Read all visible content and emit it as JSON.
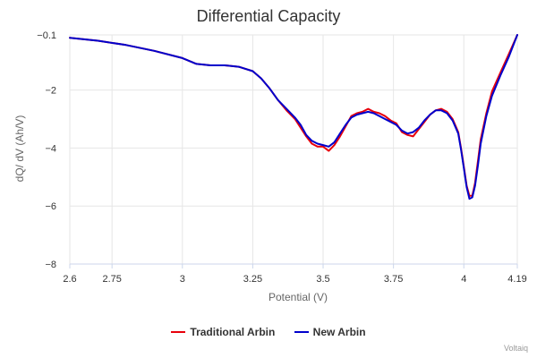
{
  "chart_data": {
    "type": "line",
    "title": "Differential Capacity",
    "xlabel": "Potential (V)",
    "ylabel": "dQ/ dV (Ah/V)",
    "xlim": [
      2.6,
      4.19
    ],
    "ylim": [
      -8,
      -0.1
    ],
    "x_ticks": [
      2.6,
      2.75,
      3,
      3.25,
      3.5,
      3.75,
      4,
      4.19
    ],
    "x_tick_labels": [
      "2.6",
      "2.75",
      "3",
      "3.25",
      "3.5",
      "3.75",
      "4",
      "4.19"
    ],
    "y_ticks": [
      -0.1,
      -2,
      -4,
      -6,
      -8
    ],
    "y_tick_labels": [
      "−0.1",
      "−2",
      "−4",
      "−6",
      "−8"
    ],
    "grid": true,
    "legend_position": "bottom-center",
    "series": [
      {
        "name": "Traditional Arbin",
        "color": "#e8000b",
        "x": [
          2.6,
          2.7,
          2.8,
          2.9,
          3.0,
          3.05,
          3.1,
          3.15,
          3.2,
          3.25,
          3.28,
          3.31,
          3.34,
          3.37,
          3.4,
          3.42,
          3.44,
          3.46,
          3.48,
          3.5,
          3.52,
          3.54,
          3.56,
          3.58,
          3.6,
          3.62,
          3.64,
          3.66,
          3.68,
          3.7,
          3.72,
          3.74,
          3.76,
          3.78,
          3.8,
          3.82,
          3.84,
          3.86,
          3.88,
          3.9,
          3.92,
          3.94,
          3.96,
          3.98,
          3.99,
          4.0,
          4.01,
          4.02,
          4.03,
          4.04,
          4.05,
          4.06,
          4.08,
          4.1,
          4.13,
          4.16,
          4.19
        ],
        "y": [
          -0.2,
          -0.3,
          -0.45,
          -0.65,
          -0.9,
          -1.1,
          -1.15,
          -1.15,
          -1.2,
          -1.35,
          -1.6,
          -1.95,
          -2.35,
          -2.7,
          -3.0,
          -3.3,
          -3.6,
          -3.85,
          -3.95,
          -3.95,
          -4.1,
          -3.9,
          -3.6,
          -3.25,
          -2.9,
          -2.8,
          -2.75,
          -2.65,
          -2.75,
          -2.8,
          -2.9,
          -3.05,
          -3.15,
          -3.45,
          -3.55,
          -3.6,
          -3.35,
          -3.1,
          -2.85,
          -2.7,
          -2.65,
          -2.75,
          -3.0,
          -3.45,
          -4.0,
          -4.65,
          -5.3,
          -5.65,
          -5.65,
          -5.2,
          -4.45,
          -3.7,
          -2.8,
          -2.05,
          -1.4,
          -0.75,
          -0.1
        ]
      },
      {
        "name": "New Arbin",
        "color": "#0000cc",
        "x": [
          2.6,
          2.7,
          2.8,
          2.9,
          3.0,
          3.05,
          3.1,
          3.15,
          3.2,
          3.25,
          3.28,
          3.31,
          3.34,
          3.37,
          3.4,
          3.42,
          3.44,
          3.46,
          3.48,
          3.5,
          3.52,
          3.54,
          3.56,
          3.58,
          3.6,
          3.62,
          3.64,
          3.66,
          3.68,
          3.7,
          3.72,
          3.74,
          3.76,
          3.78,
          3.8,
          3.82,
          3.84,
          3.86,
          3.88,
          3.9,
          3.92,
          3.94,
          3.96,
          3.98,
          3.99,
          4.0,
          4.01,
          4.02,
          4.03,
          4.04,
          4.05,
          4.06,
          4.08,
          4.1,
          4.13,
          4.16,
          4.19
        ],
        "y": [
          -0.2,
          -0.3,
          -0.45,
          -0.65,
          -0.9,
          -1.1,
          -1.15,
          -1.15,
          -1.2,
          -1.35,
          -1.6,
          -1.95,
          -2.35,
          -2.65,
          -2.95,
          -3.2,
          -3.55,
          -3.75,
          -3.85,
          -3.9,
          -3.95,
          -3.8,
          -3.5,
          -3.2,
          -2.95,
          -2.85,
          -2.8,
          -2.75,
          -2.8,
          -2.9,
          -3.0,
          -3.1,
          -3.2,
          -3.4,
          -3.5,
          -3.45,
          -3.3,
          -3.05,
          -2.85,
          -2.7,
          -2.7,
          -2.8,
          -3.05,
          -3.5,
          -4.05,
          -4.7,
          -5.35,
          -5.75,
          -5.7,
          -5.3,
          -4.6,
          -3.85,
          -2.9,
          -2.2,
          -1.5,
          -0.85,
          -0.1
        ]
      }
    ]
  },
  "credits": "Voltaiq"
}
